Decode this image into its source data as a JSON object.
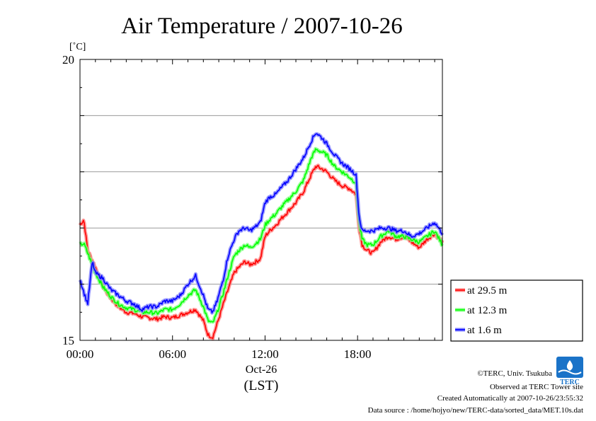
{
  "chart_data": {
    "type": "line",
    "title": "Air Temperature / 2007-10-26",
    "ylabel": "[˚C]",
    "ylim": [
      15,
      20
    ],
    "yticks": [
      15,
      16,
      17,
      18,
      19,
      20
    ],
    "y_tick_labels": [
      "15",
      "20"
    ],
    "xlim": [
      0,
      23.5
    ],
    "x_tick_labels": [
      "00:00",
      "06:00",
      "12:00",
      "18:00"
    ],
    "x_ticks": [
      0,
      6,
      12,
      18
    ],
    "date_label": "Oct-26",
    "xlabel": "(LST)",
    "grid": true,
    "legend_position": "right",
    "series": [
      {
        "name": "at 29.5 m",
        "color": "#ff0000",
        "x": [
          0,
          0.25,
          0.5,
          1.0,
          1.5,
          2.0,
          2.5,
          3.0,
          3.5,
          4.0,
          4.5,
          5.0,
          5.5,
          6.0,
          6.5,
          7.0,
          7.5,
          8.0,
          8.3,
          8.6,
          8.9,
          9.3,
          9.6,
          10.0,
          10.3,
          10.7,
          11.0,
          11.3,
          11.7,
          12.0,
          12.3,
          12.7,
          13.0,
          13.5,
          14.0,
          14.5,
          15.0,
          15.3,
          15.7,
          16.0,
          16.5,
          17.0,
          17.5,
          17.9,
          18.1,
          18.3,
          18.6,
          19.0,
          19.5,
          20.0,
          20.5,
          21.0,
          21.5,
          22.0,
          22.5,
          23.0,
          23.5
        ],
        "y": [
          17.05,
          17.15,
          16.6,
          16.3,
          15.95,
          15.75,
          15.6,
          15.5,
          15.48,
          15.42,
          15.4,
          15.38,
          15.42,
          15.4,
          15.45,
          15.5,
          15.55,
          15.35,
          15.1,
          15.05,
          15.3,
          15.65,
          15.9,
          16.2,
          16.3,
          16.4,
          16.35,
          16.38,
          16.45,
          16.85,
          16.95,
          17.05,
          17.15,
          17.3,
          17.45,
          17.65,
          17.95,
          18.1,
          18.05,
          18.0,
          17.85,
          17.75,
          17.7,
          17.6,
          17.0,
          16.7,
          16.6,
          16.55,
          16.75,
          16.85,
          16.8,
          16.85,
          16.75,
          16.65,
          16.8,
          16.9,
          16.75
        ]
      },
      {
        "name": "at 12.3 m",
        "color": "#00ff00",
        "x": [
          0,
          0.25,
          0.5,
          1.0,
          1.5,
          2.0,
          2.5,
          3.0,
          3.5,
          4.0,
          4.5,
          5.0,
          5.5,
          6.0,
          6.5,
          7.0,
          7.5,
          8.0,
          8.3,
          8.6,
          8.9,
          9.3,
          9.6,
          10.0,
          10.3,
          10.7,
          11.0,
          11.3,
          11.7,
          12.0,
          12.3,
          12.7,
          13.0,
          13.5,
          14.0,
          14.5,
          15.0,
          15.3,
          15.7,
          16.0,
          16.5,
          17.0,
          17.5,
          17.9,
          18.1,
          18.3,
          18.6,
          19.0,
          19.5,
          20.0,
          20.5,
          21.0,
          21.5,
          22.0,
          22.5,
          23.0,
          23.5
        ],
        "y": [
          16.7,
          16.72,
          16.55,
          16.2,
          15.95,
          15.78,
          15.65,
          15.58,
          15.55,
          15.5,
          15.5,
          15.48,
          15.55,
          15.55,
          15.65,
          15.8,
          15.9,
          15.6,
          15.35,
          15.3,
          15.5,
          15.85,
          16.15,
          16.5,
          16.6,
          16.7,
          16.65,
          16.7,
          16.8,
          17.05,
          17.15,
          17.25,
          17.35,
          17.5,
          17.65,
          17.85,
          18.25,
          18.4,
          18.35,
          18.3,
          18.1,
          18.0,
          17.9,
          17.8,
          17.1,
          16.8,
          16.7,
          16.7,
          16.85,
          16.95,
          16.85,
          16.85,
          16.8,
          16.75,
          16.85,
          16.95,
          16.7
        ]
      },
      {
        "name": "at 1.6 m",
        "color": "#0000ff",
        "x": [
          0,
          0.25,
          0.5,
          0.8,
          1.0,
          1.5,
          2.0,
          2.5,
          3.0,
          3.5,
          4.0,
          4.5,
          5.0,
          5.5,
          6.0,
          6.5,
          7.0,
          7.5,
          8.0,
          8.3,
          8.6,
          8.9,
          9.3,
          9.6,
          10.0,
          10.3,
          10.7,
          11.0,
          11.3,
          11.7,
          12.0,
          12.3,
          12.7,
          13.0,
          13.5,
          14.0,
          14.5,
          15.0,
          15.3,
          15.7,
          16.0,
          16.5,
          17.0,
          17.5,
          17.9,
          18.1,
          18.3,
          18.6,
          19.0,
          19.5,
          20.0,
          20.5,
          21.0,
          21.5,
          22.0,
          22.5,
          23.0,
          23.5
        ],
        "y": [
          16.1,
          15.85,
          15.65,
          16.4,
          16.2,
          16.1,
          15.9,
          15.8,
          15.7,
          15.65,
          15.55,
          15.6,
          15.6,
          15.7,
          15.7,
          15.8,
          16.0,
          16.15,
          15.8,
          15.55,
          15.5,
          15.7,
          16.1,
          16.5,
          16.8,
          16.95,
          17.0,
          16.95,
          17.0,
          17.1,
          17.45,
          17.55,
          17.6,
          17.7,
          17.85,
          18.05,
          18.25,
          18.55,
          18.7,
          18.6,
          18.5,
          18.3,
          18.15,
          18.05,
          17.95,
          17.2,
          16.95,
          16.95,
          16.95,
          17.0,
          17.0,
          16.95,
          16.95,
          16.85,
          16.9,
          17.0,
          17.1,
          16.9
        ]
      }
    ]
  },
  "footer": {
    "copyright": "©TERC, Univ. Tsukuba",
    "observed": "Observed at TERC Tower site",
    "created": "Created Automatically at 2007-10-26/23:55:32",
    "source": "Data source : /home/hojyo/new/TERC-data/sorted_data/MET.10s.dat",
    "logo_text": "TERC",
    "logo_color": "#1a73c8"
  }
}
